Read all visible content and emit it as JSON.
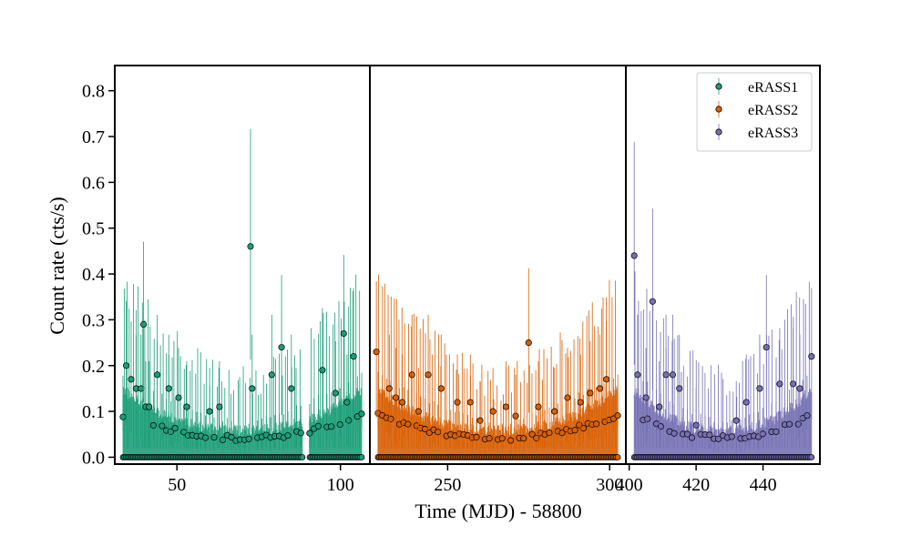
{
  "chart_data": {
    "type": "scatter",
    "xlabel": "Time (MJD) - 58800",
    "ylabel": "Count rate (cts/s)",
    "ylim": [
      -0.015,
      0.855
    ],
    "yticks": [
      0.0,
      0.1,
      0.2,
      0.3,
      0.4,
      0.5,
      0.6,
      0.7,
      0.8
    ],
    "ytick_labels": [
      "0.0",
      "0.1",
      "0.2",
      "0.3",
      "0.4",
      "0.5",
      "0.6",
      "0.7",
      "0.8"
    ],
    "legend_position": "top-right",
    "grid": false,
    "panels": [
      {
        "series": "eRASS1",
        "color": "#1b9e77",
        "xlim": [
          31,
          109
        ],
        "xticks": [
          50,
          100
        ],
        "xtick_labels": [
          "50",
          "100"
        ],
        "peaks": [
          [
            34.5,
            0.2
          ],
          [
            36,
            0.17
          ],
          [
            37.5,
            0.15
          ],
          [
            39,
            0.15
          ],
          [
            39.8,
            0.29
          ],
          [
            40.5,
            0.11
          ],
          [
            41.5,
            0.11
          ],
          [
            44,
            0.18
          ],
          [
            47.5,
            0.15
          ],
          [
            50.5,
            0.13
          ],
          [
            53,
            0.11
          ],
          [
            60,
            0.1
          ],
          [
            63,
            0.11
          ],
          [
            72.5,
            0.46
          ],
          [
            73,
            0.15
          ],
          [
            79,
            0.18
          ],
          [
            82,
            0.24
          ],
          [
            85,
            0.15
          ],
          [
            94.5,
            0.19
          ],
          [
            98.5,
            0.14
          ],
          [
            101,
            0.27
          ],
          [
            102,
            0.12
          ],
          [
            104,
            0.22
          ]
        ],
        "gap": [
          88.5,
          90.5
        ]
      },
      {
        "series": "eRASS2",
        "color": "#d95f02",
        "xlim": [
          226,
          305
        ],
        "xticks": [
          250,
          300
        ],
        "xtick_labels": [
          "250",
          "300"
        ],
        "peaks": [
          [
            228,
            0.23
          ],
          [
            232,
            0.15
          ],
          [
            234,
            0.13
          ],
          [
            236,
            0.12
          ],
          [
            239,
            0.18
          ],
          [
            241,
            0.1
          ],
          [
            244,
            0.18
          ],
          [
            248,
            0.15
          ],
          [
            253,
            0.12
          ],
          [
            257,
            0.12
          ],
          [
            260,
            0.08
          ],
          [
            264,
            0.1
          ],
          [
            268,
            0.11
          ],
          [
            271,
            0.09
          ],
          [
            275,
            0.25
          ],
          [
            278,
            0.11
          ],
          [
            283,
            0.1
          ],
          [
            287,
            0.13
          ],
          [
            291,
            0.12
          ],
          [
            294,
            0.14
          ],
          [
            297,
            0.15
          ],
          [
            299,
            0.17
          ]
        ],
        "gap": null
      },
      {
        "series": "eRASS3",
        "color": "#7570b3",
        "xlim": [
          399,
          457
        ],
        "xticks": [
          400,
          420,
          440
        ],
        "xtick_labels": [
          "400",
          "420",
          "440"
        ],
        "peaks": [
          [
            401.5,
            0.44
          ],
          [
            402.5,
            0.18
          ],
          [
            405,
            0.13
          ],
          [
            407,
            0.34
          ],
          [
            409,
            0.11
          ],
          [
            411,
            0.18
          ],
          [
            413,
            0.18
          ],
          [
            415,
            0.15
          ],
          [
            420,
            0.07
          ],
          [
            432,
            0.08
          ],
          [
            435,
            0.12
          ],
          [
            439,
            0.15
          ],
          [
            441,
            0.24
          ],
          [
            445,
            0.16
          ],
          [
            449,
            0.16
          ],
          [
            451,
            0.15
          ],
          [
            454.5,
            0.22
          ]
        ],
        "gap": null
      }
    ]
  },
  "legend": {
    "entries": [
      {
        "label": "eRASS1",
        "color": "#1b9e77"
      },
      {
        "label": "eRASS2",
        "color": "#d95f02"
      },
      {
        "label": "eRASS3",
        "color": "#7570b3"
      }
    ]
  }
}
